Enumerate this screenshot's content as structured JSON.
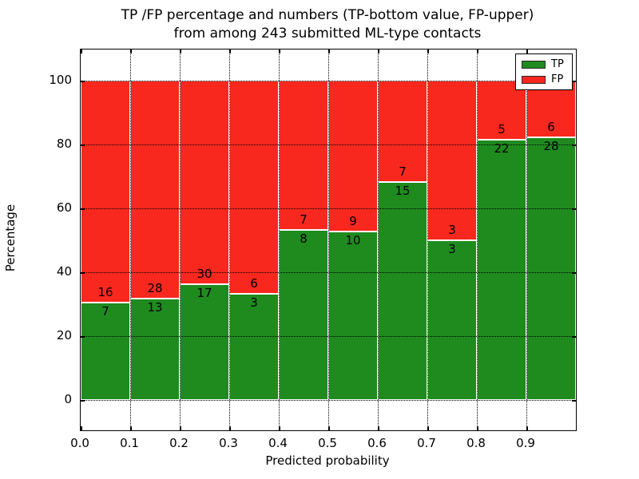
{
  "figure": {
    "title_line1": "TP /FP percentage and numbers (TP-bottom value, FP-upper)",
    "title_line2": "from among 243 submitted ML-type contacts"
  },
  "chart_data": {
    "type": "bar",
    "stacked": true,
    "normalized_to_100_percent": true,
    "title": "TP /FP percentage and numbers (TP-bottom value, FP-upper)\nfrom among 243 submitted ML-type contacts",
    "xlabel": "Predicted probability",
    "ylabel": "Percentage",
    "total_contacts": 243,
    "categories": [
      0.0,
      0.1,
      0.2,
      0.3,
      0.4,
      0.5,
      0.6,
      0.7,
      0.8,
      0.9
    ],
    "bin_width": 0.1,
    "series": [
      {
        "name": "TP",
        "color": "#1f8b1f",
        "counts": [
          7,
          13,
          17,
          3,
          8,
          10,
          15,
          3,
          22,
          28
        ]
      },
      {
        "name": "FP",
        "color": "#f8281e",
        "counts": [
          16,
          28,
          30,
          6,
          7,
          9,
          7,
          3,
          5,
          6
        ]
      }
    ],
    "tp_percent_of_bin": [
      30.4,
      31.7,
      36.2,
      33.3,
      53.3,
      52.6,
      68.2,
      50.0,
      81.5,
      82.4
    ],
    "x_tick_labels": [
      "0.0",
      "0.1",
      "0.2",
      "0.3",
      "0.4",
      "0.5",
      "0.6",
      "0.7",
      "0.8",
      "0.9"
    ],
    "y_ticks": [
      0,
      20,
      40,
      60,
      80,
      100
    ],
    "xlim": [
      0.0,
      1.0
    ],
    "ylim": [
      -10,
      110
    ],
    "grid": "dotted black, both axes, drawn above bars",
    "legend": {
      "position": "upper right",
      "entries": [
        {
          "label": "TP",
          "color": "#1f8b1f"
        },
        {
          "label": "FP",
          "color": "#f8281e"
        }
      ]
    }
  }
}
